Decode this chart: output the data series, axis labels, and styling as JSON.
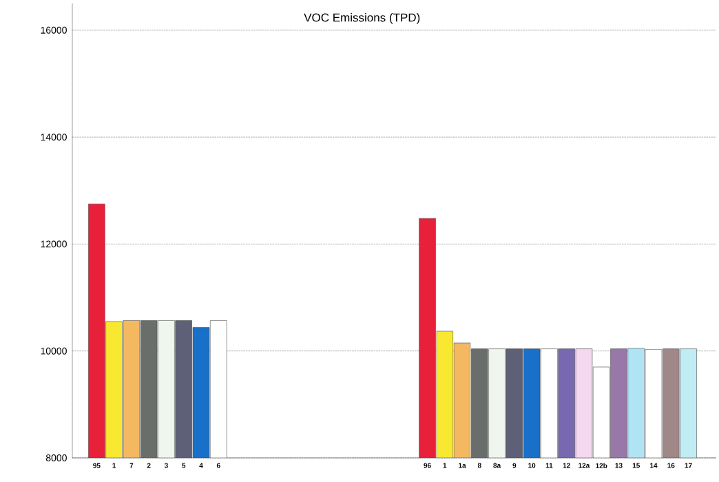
{
  "chart_data": {
    "type": "bar",
    "title": "VOC Emissions (TPD)",
    "categories": [
      "95",
      "1",
      "7",
      "2",
      "3",
      "5",
      "4",
      "6",
      null,
      null,
      null,
      null,
      null,
      null,
      null,
      null,
      null,
      null,
      null,
      "96",
      "1",
      "1a",
      "8",
      "8a",
      "9",
      "10",
      "11",
      "12",
      "12a",
      "12b",
      "13",
      "15",
      "14",
      "16",
      "17"
    ],
    "values": [
      12750,
      10550,
      10570,
      10570,
      10570,
      10570,
      10440,
      10570,
      null,
      null,
      null,
      null,
      null,
      null,
      null,
      null,
      null,
      null,
      null,
      12480,
      10370,
      10150,
      10040,
      10040,
      10040,
      10040,
      10040,
      10040,
      10040,
      9700,
      10040,
      10050,
      10030,
      10040,
      10040
    ],
    "colors": [
      "#e8203a",
      "#f8e830",
      "#f4b860",
      "#6a6e6a",
      "#eef6ee",
      "#5e6078",
      "#1870c8",
      "#ffffff",
      null,
      null,
      null,
      null,
      null,
      null,
      null,
      null,
      null,
      null,
      null,
      "#e8203a",
      "#f8e830",
      "#f4b860",
      "#6a6e6a",
      "#eef6ee",
      "#5e6078",
      "#1870c8",
      "#ffffff",
      "#7868b0",
      "#f4d8f0",
      "#ffffff",
      "#9878a8",
      "#b0e4f4",
      "#ffffff",
      "#a08888",
      "#c0ecf4"
    ],
    "ylim": [
      8000,
      16500
    ],
    "yticks": [
      8000,
      {
        "value": 9000,
        "label": null
      },
      10000,
      {
        "value": 11000,
        "label": null
      },
      12000,
      {
        "value": 13000,
        "label": null
      },
      14000,
      {
        "value": 15000,
        "label": null
      },
      16000
    ],
    "grid": "y"
  }
}
